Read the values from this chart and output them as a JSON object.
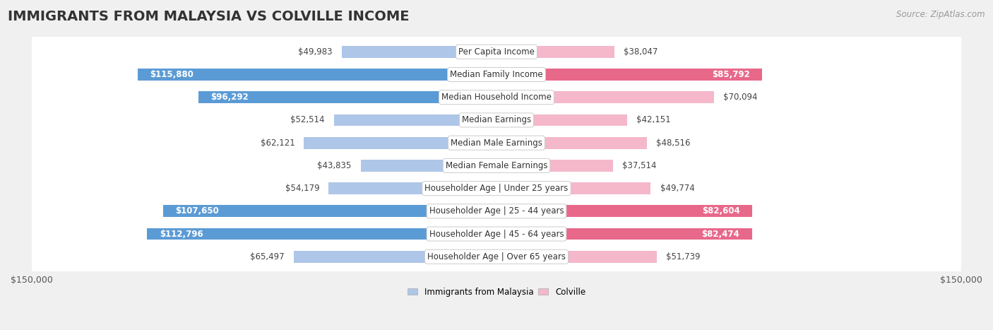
{
  "title": "IMMIGRANTS FROM MALAYSIA VS COLVILLE INCOME",
  "source": "Source: ZipAtlas.com",
  "categories": [
    "Per Capita Income",
    "Median Family Income",
    "Median Household Income",
    "Median Earnings",
    "Median Male Earnings",
    "Median Female Earnings",
    "Householder Age | Under 25 years",
    "Householder Age | 25 - 44 years",
    "Householder Age | 45 - 64 years",
    "Householder Age | Over 65 years"
  ],
  "malaysia_values": [
    49983,
    115880,
    96292,
    52514,
    62121,
    43835,
    54179,
    107650,
    112796,
    65497
  ],
  "colville_values": [
    38047,
    85792,
    70094,
    42151,
    48516,
    37514,
    49774,
    82604,
    82474,
    51739
  ],
  "malaysia_labels": [
    "$49,983",
    "$115,880",
    "$96,292",
    "$52,514",
    "$62,121",
    "$43,835",
    "$54,179",
    "$107,650",
    "$112,796",
    "$65,497"
  ],
  "colville_labels": [
    "$38,047",
    "$85,792",
    "$70,094",
    "$42,151",
    "$48,516",
    "$37,514",
    "$49,774",
    "$82,604",
    "$82,474",
    "$51,739"
  ],
  "malaysia_color_light": "#aec6e8",
  "malaysia_color_dark": "#5b9bd5",
  "colville_color_light": "#f4b8ca",
  "colville_color_dark": "#e8688a",
  "inside_threshold": 75000,
  "axis_limit": 150000,
  "background_color": "#f0f0f0",
  "row_background": "#ffffff",
  "label_box_color": "#ffffff",
  "legend_malaysia_color": "#aec6e8",
  "legend_colville_color": "#f4b8ca",
  "title_fontsize": 14,
  "source_fontsize": 8.5,
  "value_fontsize": 8.5,
  "category_fontsize": 8.5,
  "axis_fontsize": 9
}
